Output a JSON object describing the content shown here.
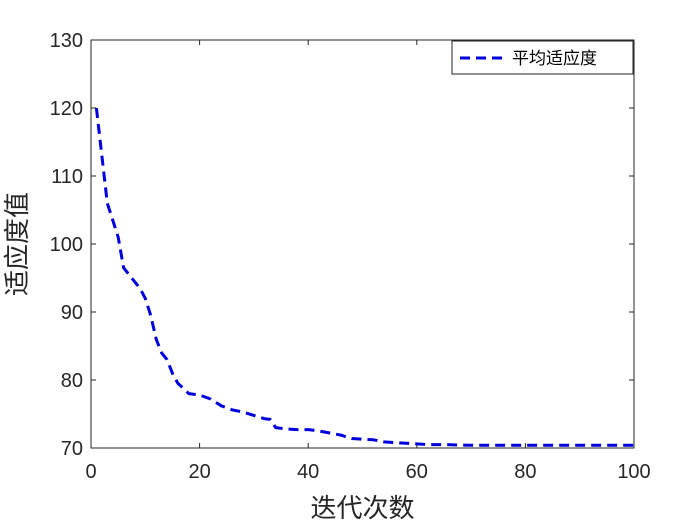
{
  "chart_data": {
    "type": "line",
    "title": "",
    "xlabel": "迭代次数",
    "ylabel": "适应度值",
    "xlim": [
      0,
      100
    ],
    "ylim": [
      70,
      130
    ],
    "xticks": [
      "0",
      "20",
      "40",
      "60",
      "80",
      "100"
    ],
    "yticks": [
      "70",
      "80",
      "90",
      "100",
      "110",
      "120",
      "130"
    ],
    "grid": false,
    "legend_position": "top-right",
    "series": [
      {
        "name": "平均适应度",
        "color": "#0000dd",
        "line_style": "dashed",
        "x": [
          1,
          3,
          5,
          6,
          7,
          8,
          9,
          10,
          11,
          12,
          13,
          14,
          15,
          16,
          17,
          18,
          20,
          22,
          24,
          26,
          28,
          30,
          32,
          33,
          34,
          36,
          38,
          40,
          42,
          44,
          46,
          48,
          50,
          52,
          54,
          56,
          58,
          60,
          62,
          65,
          70,
          75,
          80,
          85,
          90,
          95,
          100
        ],
        "y": [
          120,
          106,
          101,
          96.5,
          95.5,
          94.5,
          93.5,
          92,
          89.5,
          86,
          84,
          83,
          81,
          79.5,
          78.8,
          78,
          77.8,
          77.2,
          76.2,
          75.6,
          75.3,
          74.8,
          74.3,
          74.2,
          73,
          72.8,
          72.7,
          72.7,
          72.5,
          72.2,
          71.9,
          71.4,
          71.3,
          71.2,
          70.9,
          70.8,
          70.7,
          70.6,
          70.5,
          70.5,
          70.4,
          70.4,
          70.4,
          70.4,
          70.4,
          70.4,
          70.4
        ]
      }
    ]
  }
}
